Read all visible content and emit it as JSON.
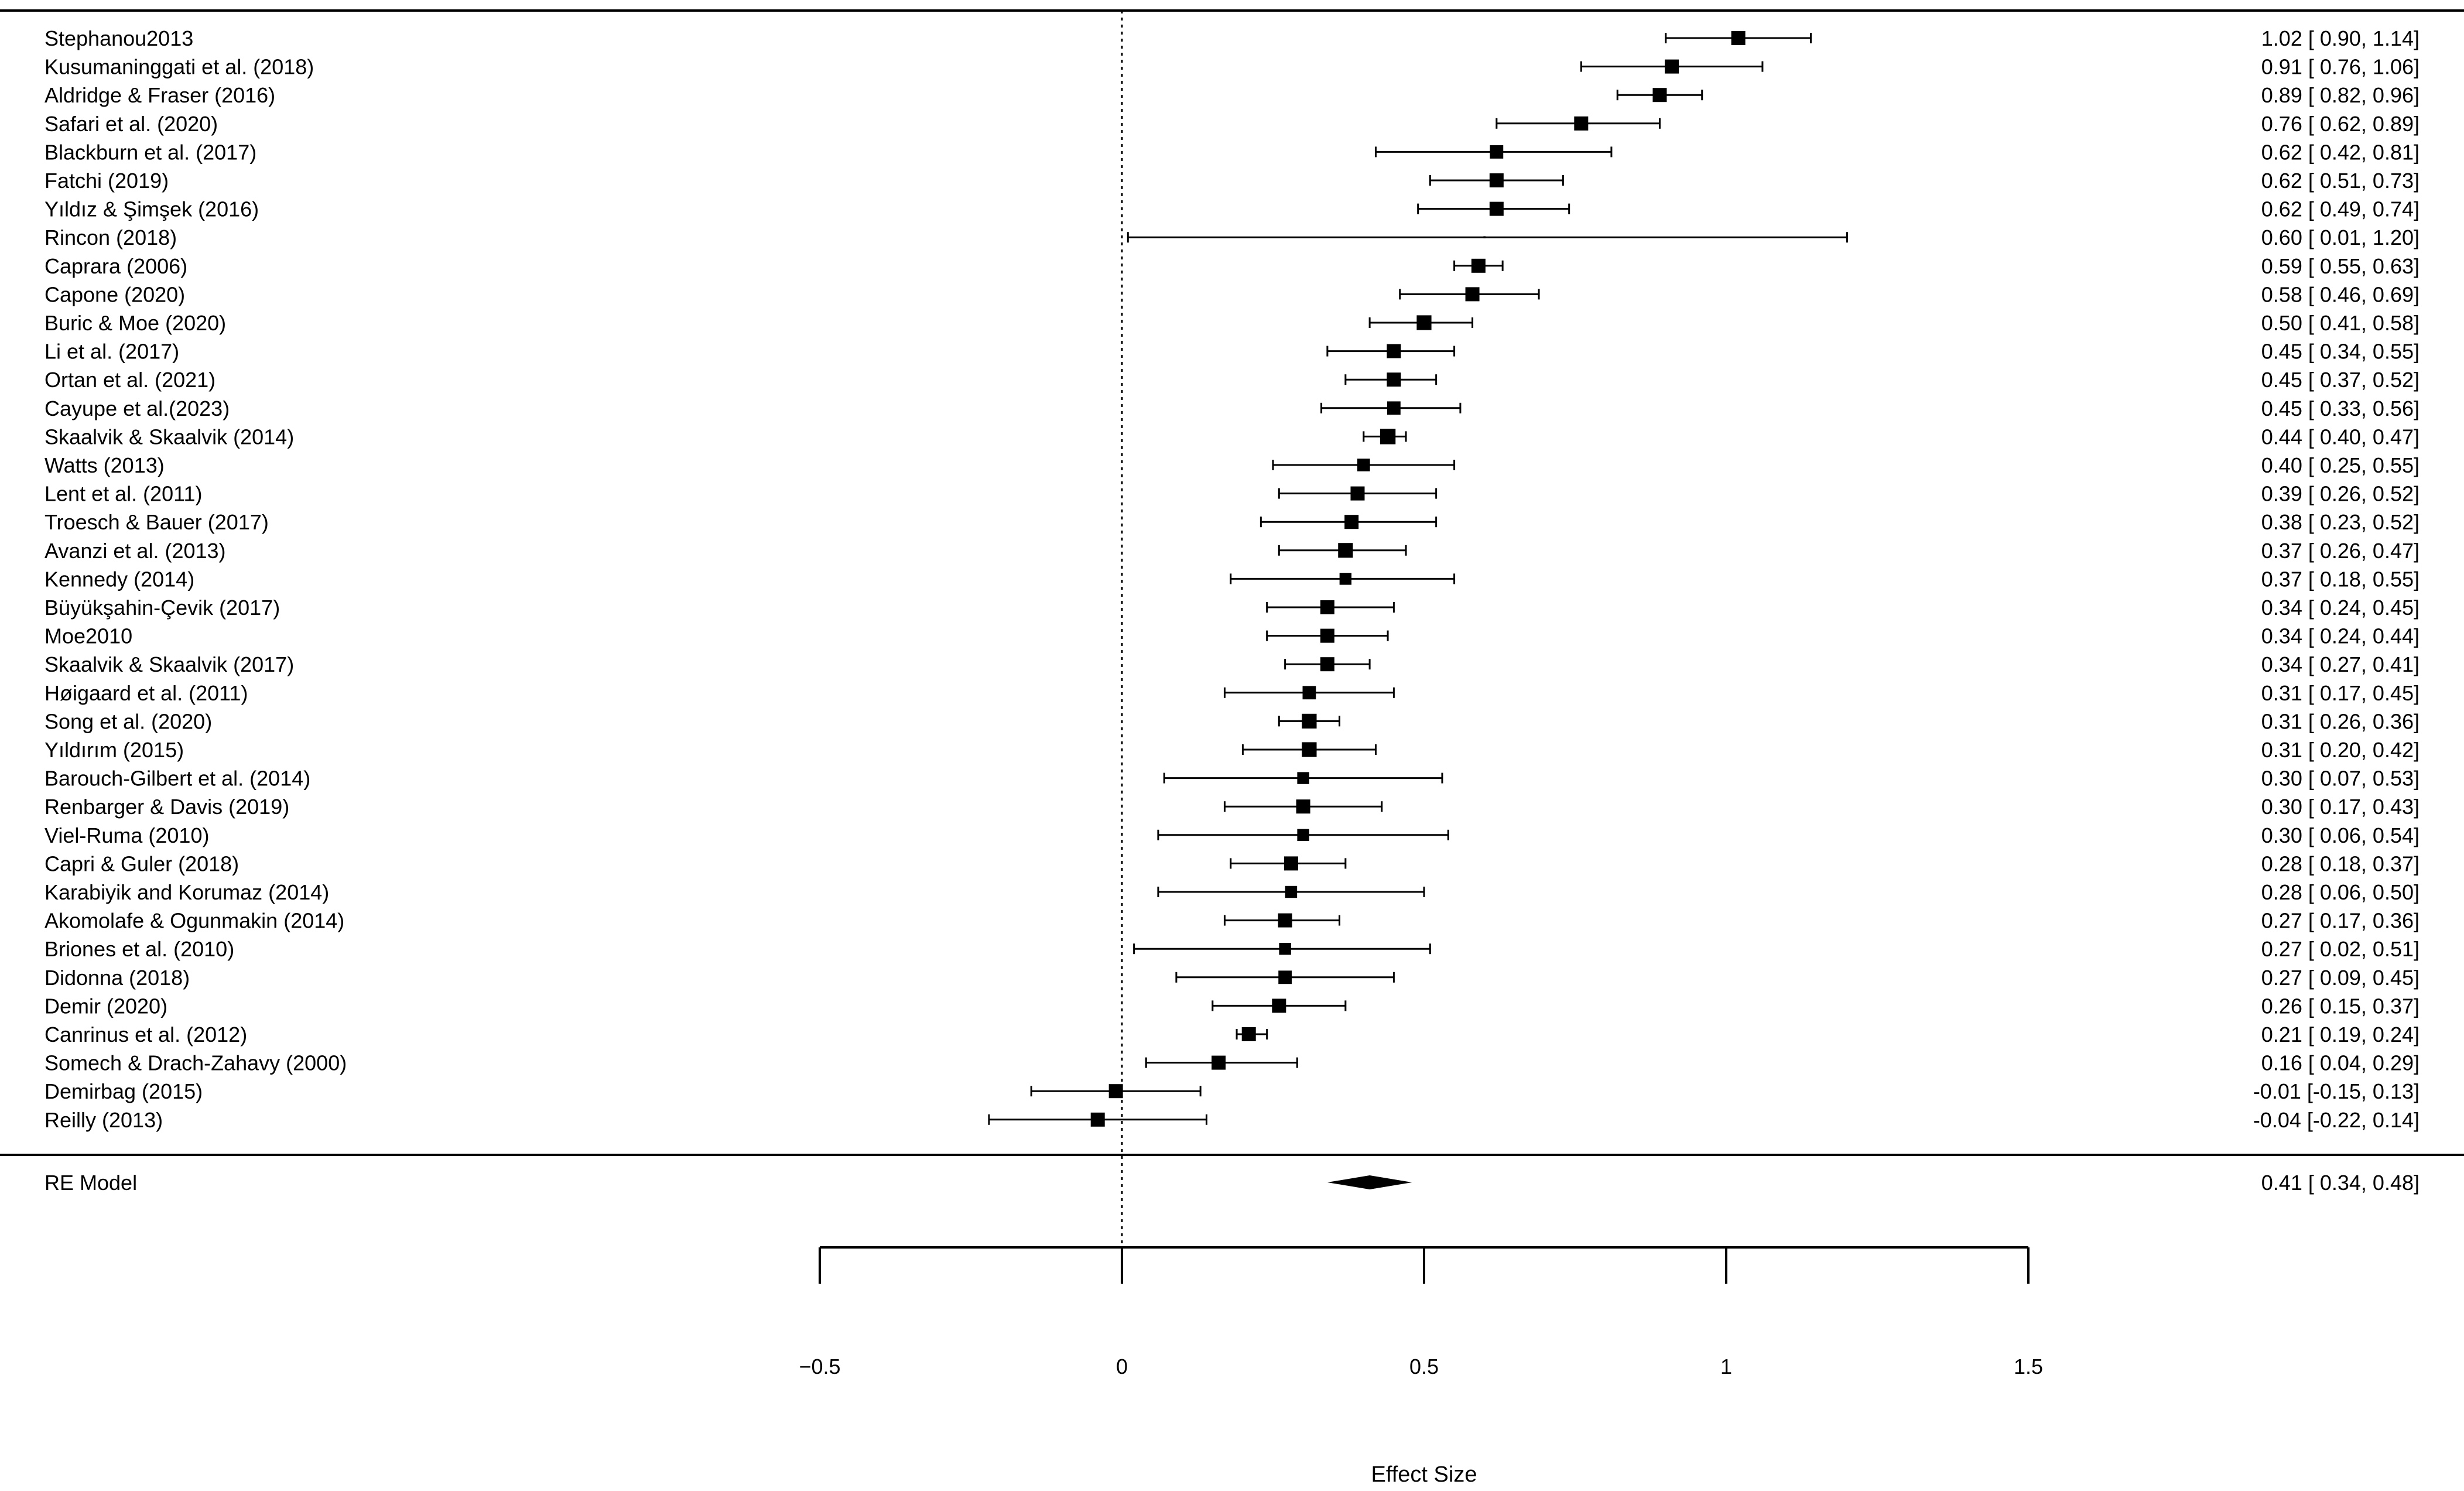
{
  "chart_data": {
    "type": "forest",
    "title": "",
    "xlabel": "Effect Size",
    "ylabel": "",
    "xlim": [
      -0.5,
      1.5
    ],
    "x_ticks": [
      -0.5,
      0,
      0.5,
      1,
      1.5
    ],
    "x_tick_labels": [
      "−0.5",
      "0",
      "0.5",
      "1",
      "1.5"
    ],
    "reference_line": 0,
    "grid": false,
    "legend": "none",
    "colors": {
      "ink": "#000000"
    },
    "studies": [
      {
        "name": "Stephanou2013",
        "est": 1.02,
        "lo": 0.9,
        "hi": 1.14,
        "label": "1.02 [ 0.90, 1.14]",
        "marker": 1.0
      },
      {
        "name": "Kusumaninggati et al. (2018)",
        "est": 0.91,
        "lo": 0.76,
        "hi": 1.06,
        "label": "0.91 [ 0.76, 1.06]",
        "marker": 1.0
      },
      {
        "name": "Aldridge & Fraser (2016)",
        "est": 0.89,
        "lo": 0.82,
        "hi": 0.96,
        "label": "0.89 [ 0.82, 0.96]",
        "marker": 1.0
      },
      {
        "name": "Safari et al. (2020)",
        "est": 0.76,
        "lo": 0.62,
        "hi": 0.89,
        "label": "0.76 [ 0.62, 0.89]",
        "marker": 1.0
      },
      {
        "name": "Blackburn et al. (2017)",
        "est": 0.62,
        "lo": 0.42,
        "hi": 0.81,
        "label": "0.62 [ 0.42, 0.81]",
        "marker": 0.95
      },
      {
        "name": "Fatchi (2019)",
        "est": 0.62,
        "lo": 0.51,
        "hi": 0.73,
        "label": "0.62 [ 0.51, 0.73]",
        "marker": 1.0
      },
      {
        "name": "Yıldız & Şimşek (2016)",
        "est": 0.62,
        "lo": 0.49,
        "hi": 0.74,
        "label": "0.62 [ 0.49, 0.74]",
        "marker": 1.0
      },
      {
        "name": "Rincon (2018)",
        "est": 0.6,
        "lo": 0.01,
        "hi": 1.2,
        "label": "0.60 [ 0.01, 1.20]",
        "marker": 0.15
      },
      {
        "name": "Caprara (2006)",
        "est": 0.59,
        "lo": 0.55,
        "hi": 0.63,
        "label": "0.59 [ 0.55, 0.63]",
        "marker": 1.0
      },
      {
        "name": "Capone (2020)",
        "est": 0.58,
        "lo": 0.46,
        "hi": 0.69,
        "label": "0.58 [ 0.46, 0.69]",
        "marker": 1.0
      },
      {
        "name": "Buric & Moe (2020)",
        "est": 0.5,
        "lo": 0.41,
        "hi": 0.58,
        "label": "0.50 [ 0.41, 0.58]",
        "marker": 1.05
      },
      {
        "name": "Li et al. (2017)",
        "est": 0.45,
        "lo": 0.34,
        "hi": 0.55,
        "label": "0.45 [ 0.34, 0.55]",
        "marker": 1.0
      },
      {
        "name": "Ortan et al. (2021)",
        "est": 0.45,
        "lo": 0.37,
        "hi": 0.52,
        "label": "0.45 [ 0.37, 0.52]",
        "marker": 1.0
      },
      {
        "name": "Cayupe et al.(2023)",
        "est": 0.45,
        "lo": 0.33,
        "hi": 0.56,
        "label": "0.45 [ 0.33, 0.56]",
        "marker": 0.95
      },
      {
        "name": "Skaalvik & Skaalvik (2014)",
        "est": 0.44,
        "lo": 0.4,
        "hi": 0.47,
        "label": "0.44 [ 0.40, 0.47]",
        "marker": 1.1
      },
      {
        "name": "Watts (2013)",
        "est": 0.4,
        "lo": 0.25,
        "hi": 0.55,
        "label": "0.40 [ 0.25, 0.55]",
        "marker": 0.9
      },
      {
        "name": "Lent et al. (2011)",
        "est": 0.39,
        "lo": 0.26,
        "hi": 0.52,
        "label": "0.39 [ 0.26, 0.52]",
        "marker": 1.0
      },
      {
        "name": "Troesch & Bauer (2017)",
        "est": 0.38,
        "lo": 0.23,
        "hi": 0.52,
        "label": "0.38 [ 0.23, 0.52]",
        "marker": 1.0
      },
      {
        "name": "Avanzi et al. (2013)",
        "est": 0.37,
        "lo": 0.26,
        "hi": 0.47,
        "label": "0.37 [ 0.26, 0.47]",
        "marker": 1.05
      },
      {
        "name": "Kennedy (2014)",
        "est": 0.37,
        "lo": 0.18,
        "hi": 0.55,
        "label": "0.37 [ 0.18, 0.55]",
        "marker": 0.85
      },
      {
        "name": "Büyükşahin-Çevik (2017)",
        "est": 0.34,
        "lo": 0.24,
        "hi": 0.45,
        "label": "0.34 [ 0.24, 0.45]",
        "marker": 1.0
      },
      {
        "name": "Moe2010",
        "est": 0.34,
        "lo": 0.24,
        "hi": 0.44,
        "label": "0.34 [ 0.24, 0.44]",
        "marker": 1.0
      },
      {
        "name": "Skaalvik & Skaalvik (2017)",
        "est": 0.34,
        "lo": 0.27,
        "hi": 0.41,
        "label": "0.34 [ 0.27, 0.41]",
        "marker": 1.0
      },
      {
        "name": "Høigaard et al. (2011)",
        "est": 0.31,
        "lo": 0.17,
        "hi": 0.45,
        "label": "0.31 [ 0.17, 0.45]",
        "marker": 0.95
      },
      {
        "name": "Song et al. (2020)",
        "est": 0.31,
        "lo": 0.26,
        "hi": 0.36,
        "label": "0.31 [ 0.26, 0.36]",
        "marker": 1.05
      },
      {
        "name": "Yıldırım (2015)",
        "est": 0.31,
        "lo": 0.2,
        "hi": 0.42,
        "label": "0.31 [ 0.20, 0.42]",
        "marker": 1.05
      },
      {
        "name": "Barouch-Gilbert et al. (2014)",
        "est": 0.3,
        "lo": 0.07,
        "hi": 0.53,
        "label": "0.30 [ 0.07, 0.53]",
        "marker": 0.85
      },
      {
        "name": "Renbarger & Davis (2019)",
        "est": 0.3,
        "lo": 0.17,
        "hi": 0.43,
        "label": "0.30 [ 0.17, 0.43]",
        "marker": 1.0
      },
      {
        "name": "Viel-Ruma (2010)",
        "est": 0.3,
        "lo": 0.06,
        "hi": 0.54,
        "label": "0.30 [ 0.06, 0.54]",
        "marker": 0.85
      },
      {
        "name": "Capri & Guler (2018)",
        "est": 0.28,
        "lo": 0.18,
        "hi": 0.37,
        "label": "0.28 [ 0.18, 0.37]",
        "marker": 1.0
      },
      {
        "name": "Karabiyik and Korumaz (2014)",
        "est": 0.28,
        "lo": 0.06,
        "hi": 0.5,
        "label": "0.28 [ 0.06, 0.50]",
        "marker": 0.85
      },
      {
        "name": "Akomolafe & Ogunmakin (2014)",
        "est": 0.27,
        "lo": 0.17,
        "hi": 0.36,
        "label": "0.27 [ 0.17, 0.36]",
        "marker": 1.0
      },
      {
        "name": "Briones et al. (2010)",
        "est": 0.27,
        "lo": 0.02,
        "hi": 0.51,
        "label": "0.27 [ 0.02, 0.51]",
        "marker": 0.85
      },
      {
        "name": "Didonna (2018)",
        "est": 0.27,
        "lo": 0.09,
        "hi": 0.45,
        "label": "0.27 [ 0.09, 0.45]",
        "marker": 0.95
      },
      {
        "name": "Demir (2020)",
        "est": 0.26,
        "lo": 0.15,
        "hi": 0.37,
        "label": "0.26 [ 0.15, 0.37]",
        "marker": 1.0
      },
      {
        "name": "Canrinus et al. (2012)",
        "est": 0.21,
        "lo": 0.19,
        "hi": 0.24,
        "label": "0.21 [ 0.19, 0.24]",
        "marker": 1.0
      },
      {
        "name": "Somech & Drach-Zahavy (2000)",
        "est": 0.16,
        "lo": 0.04,
        "hi": 0.29,
        "label": "0.16 [ 0.04, 0.29]",
        "marker": 1.0
      },
      {
        "name": "Demirbag (2015)",
        "est": -0.01,
        "lo": -0.15,
        "hi": 0.13,
        "label": "-0.01 [-0.15, 0.13]",
        "marker": 1.0
      },
      {
        "name": "Reilly (2013)",
        "est": -0.04,
        "lo": -0.22,
        "hi": 0.14,
        "label": "-0.04 [-0.22, 0.14]",
        "marker": 1.0
      }
    ],
    "summary": {
      "name": "RE Model",
      "est": 0.41,
      "lo": 0.34,
      "hi": 0.48,
      "label": "0.41 [ 0.34, 0.48]"
    }
  }
}
